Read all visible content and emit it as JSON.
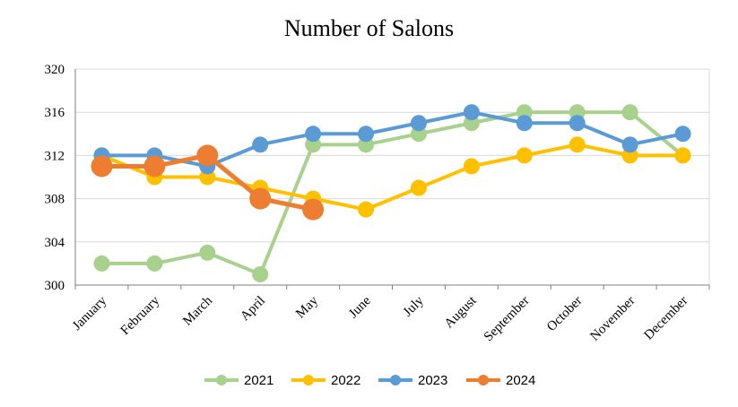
{
  "chart_data": {
    "type": "line",
    "title": "Number of Salons",
    "xlabel": "",
    "ylabel": "",
    "categories": [
      "January",
      "February",
      "March",
      "April",
      "May",
      "June",
      "July",
      "August",
      "September",
      "October",
      "November",
      "December"
    ],
    "ylim": [
      300,
      320
    ],
    "yticks": [
      "300",
      "304",
      "308",
      "312",
      "316",
      "320"
    ],
    "grid": true,
    "legend": "bottom",
    "series": [
      {
        "name": "2021",
        "color": "#a9d18e",
        "values": [
          302,
          302,
          303,
          301,
          313,
          313,
          314,
          315,
          316,
          316,
          316,
          312
        ]
      },
      {
        "name": "2022",
        "color": "#ffc000",
        "values": [
          312,
          310,
          310,
          309,
          308,
          307,
          309,
          311,
          312,
          313,
          312,
          312
        ]
      },
      {
        "name": "2023",
        "color": "#5b9bd5",
        "values": [
          312,
          312,
          311,
          313,
          314,
          314,
          315,
          316,
          315,
          315,
          313,
          314
        ]
      },
      {
        "name": "2024",
        "color": "#ed7d31",
        "values": [
          311,
          311,
          312,
          308,
          307,
          null,
          null,
          null,
          null,
          null,
          null,
          null
        ]
      }
    ]
  }
}
